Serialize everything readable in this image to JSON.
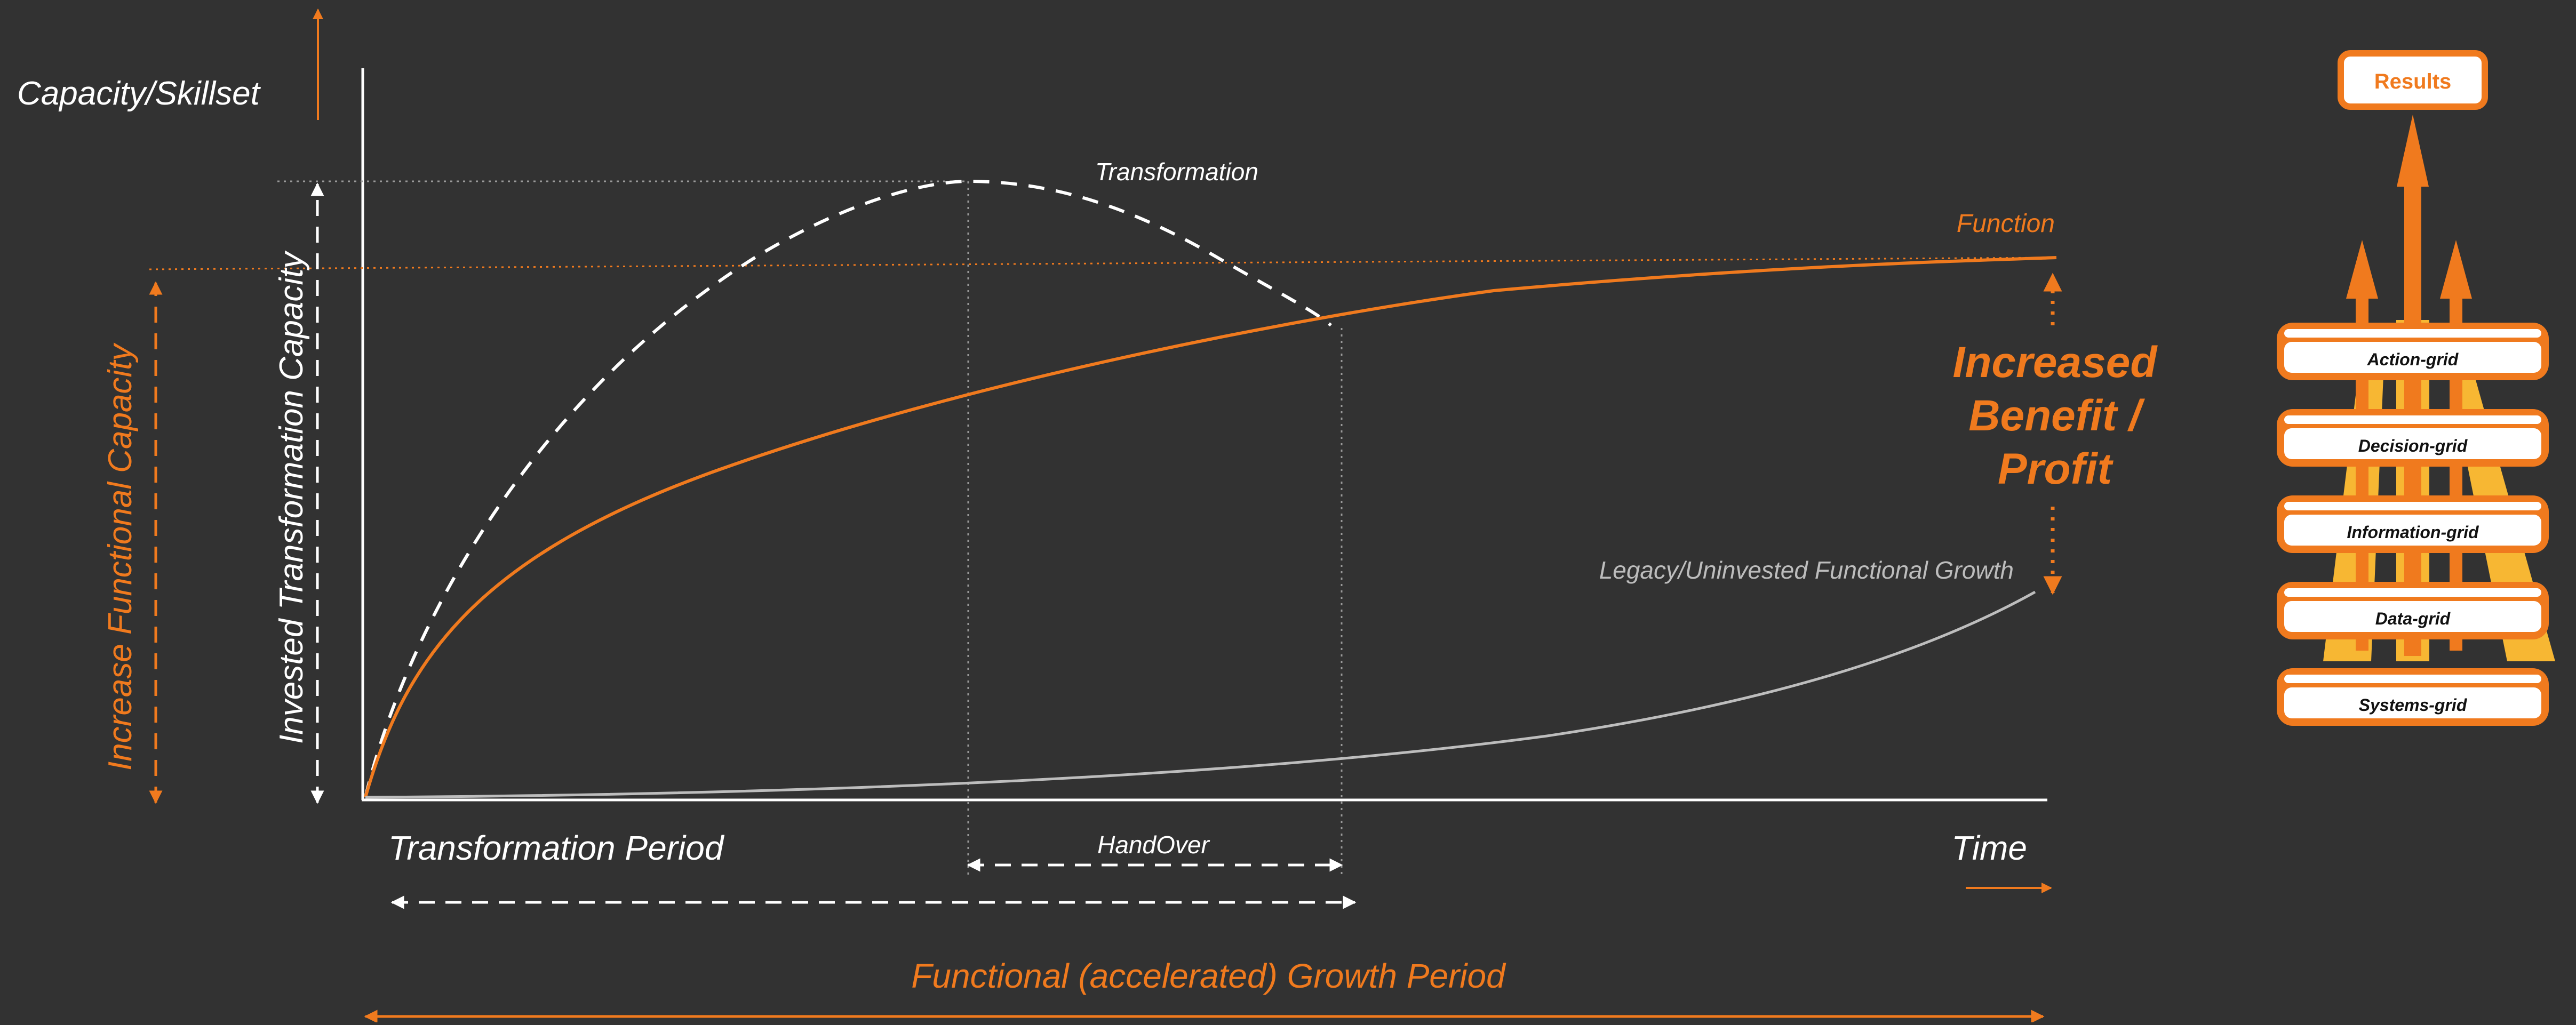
{
  "colors": {
    "background": "#323232",
    "orange": "#F07A1E",
    "white": "#FFFFFF",
    "legacy_gray": "#BDBDBD",
    "dotted_gray": "#9A9A9A",
    "stack_yellow": "#F7B733"
  },
  "labels": {
    "y_axis": "Capacity/Skillset",
    "transformation_curve": "Transformation",
    "function_curve": "Function",
    "legacy_curve": "Legacy/Uninvested Functional Growth",
    "increase_functional_capacity": "Increase  Functional Capacity",
    "invested_transformation_capacity": "Invested Transformation Capacity",
    "benefit_line1": "Increased",
    "benefit_line2": "Benefit /",
    "benefit_line3": "Profit",
    "transformation_period": "Transformation Period",
    "handover": "HandOver",
    "time": "Time",
    "growth_period": "Functional (accelerated) Growth Period"
  },
  "stack": {
    "results": "Results",
    "layers": [
      "Action-grid",
      "Decision-grid",
      "Information-grid",
      "Data-grid",
      "Systems-grid"
    ]
  }
}
